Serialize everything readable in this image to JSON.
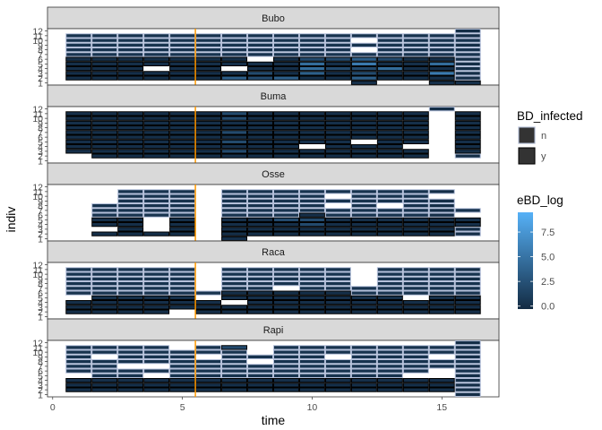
{
  "chart_data": {
    "type": "heatmap",
    "xlabel": "time",
    "ylabel": "indiv",
    "xlim": [
      -0.2,
      17.2
    ],
    "x_ticks": [
      "0",
      "5",
      "10",
      "15"
    ],
    "x_tick_values": [
      0,
      5,
      10,
      15
    ],
    "y_ticks": [
      "1",
      "2",
      "3",
      "4",
      "5",
      "6",
      "7",
      "8",
      "9",
      "10",
      "11",
      "12"
    ],
    "ylim": [
      0.5,
      12.5
    ],
    "vline": {
      "x": 5.5,
      "color": "#ff9900"
    },
    "fill_legend": {
      "title": "BD_infected",
      "entries": [
        "n",
        "y"
      ],
      "outline_colors": [
        "#b3bfd9",
        "#000000"
      ]
    },
    "color_legend": {
      "title": "eBD_log",
      "breaks": [
        "0.0",
        "2.5",
        "5.0",
        "7.5"
      ],
      "break_values": [
        0,
        2.5,
        5,
        7.5
      ],
      "limits": [
        -0.3,
        9.5
      ],
      "low_color": "#132b43",
      "high_color": "#56b1f7"
    },
    "panels": [
      {
        "label": "Bubo",
        "times": [
          1,
          2,
          3,
          4,
          5,
          6,
          7,
          8,
          9,
          10,
          11,
          12,
          13,
          14,
          15,
          16
        ],
        "rows": [
          {
            "i": 12,
            "v": "...............m"
          },
          {
            "i": 11,
            "v": "nnnnnnnnnnnnnnnm"
          },
          {
            "i": 10,
            "v": "nnnnnnnnnnn.nnnn"
          },
          {
            "i": 9,
            "v": "nnnnnnnnnnnnnnnm"
          },
          {
            "i": 8,
            "v": "nnnnnnnnnnn.nnnn"
          },
          {
            "i": 7,
            "v": "nnnnnnnnnnnnnnnn"
          },
          {
            "i": 6,
            "v": "yyyyyyy.ygg4gyym"
          },
          {
            "i": 5,
            "v": "yyyyyyyyy5y6yy5m"
          },
          {
            "i": 4,
            "v": "yyy.yy.yy5gg5yym"
          },
          {
            "i": 3,
            "v": "yyyyyyygy4ygyy6m"
          },
          {
            "i": 2,
            "v": "yyyyyy4g4yy4yyym"
          },
          {
            "i": 1,
            "v": "...........-..-y"
          }
        ]
      },
      {
        "label": "Buma",
        "times": [
          1,
          2,
          3,
          4,
          5,
          6,
          7,
          8,
          9,
          10,
          11,
          12,
          13,
          14,
          15,
          16
        ],
        "rows": [
          {
            "i": 12,
            "v": "..............m."
          },
          {
            "i": 11,
            "v": "yyyyyygyyyyyyy.y"
          },
          {
            "i": 10,
            "v": "yyyyyygyyyyyyy.y"
          },
          {
            "i": 9,
            "v": "yyyyyyyyyyyyyy.y"
          },
          {
            "i": 8,
            "v": "yyyyyyyyyyyyyy.y"
          },
          {
            "i": 7,
            "v": "yyyyyygyyyyyyy.y"
          },
          {
            "i": 6,
            "v": "yyyyyyyyyyyyyy.y"
          },
          {
            "i": 5,
            "v": "yyyyyygyyyy.yy.y"
          },
          {
            "i": 4,
            "v": "yyyyyyyyy.yyy..y"
          },
          {
            "i": 3,
            "v": "yyyyyygyyyyyyy.y"
          },
          {
            "i": 2,
            "v": ".yyyyyyyyyyyyy.m"
          },
          {
            "i": 1,
            "v": "................"
          }
        ]
      },
      {
        "label": "Osse",
        "times": [
          1,
          2,
          3,
          4,
          5,
          6,
          7,
          8,
          9,
          10,
          11,
          12,
          13,
          14,
          15,
          16
        ],
        "rows": [
          {
            "i": 12,
            "v": "................"
          },
          {
            "i": 11,
            "v": "..nnn.nnnnnnnnm."
          },
          {
            "i": 10,
            "v": "..nnn.nnnn.nnn.."
          },
          {
            "i": 9,
            "v": "..nnn.nnnnnnnnm."
          },
          {
            "i": 8,
            "v": ".nnnn.nnnn.n.nm."
          },
          {
            "i": 7,
            "v": ".nnnn.nnnnnnnnmn"
          },
          {
            "i": 6,
            "v": ".nnnn.nnnynnnnm."
          },
          {
            "i": 5,
            "v": ".yy.y.yyggyyyyyy"
          },
          {
            "i": 4,
            "v": ".yy.y.yyygyyyyyy"
          },
          {
            "i": 3,
            "v": "..y.y.yyyyyyyyym"
          },
          {
            "i": 2,
            "v": ".yyyy.yyyyyyyyym"
          },
          {
            "i": 1,
            "v": "......-........."
          }
        ]
      },
      {
        "label": "Raca",
        "times": [
          1,
          2,
          3,
          4,
          5,
          6,
          7,
          8,
          9,
          10,
          11,
          12,
          13,
          14,
          15,
          16
        ],
        "rows": [
          {
            "i": 12,
            "v": "................"
          },
          {
            "i": 11,
            "v": "nnnnn.nnnnn.nnnm"
          },
          {
            "i": 10,
            "v": "nnnnn.nnnnn.nnnn"
          },
          {
            "i": 9,
            "v": "nnnnn.nnnnn.nnnm"
          },
          {
            "i": 8,
            "v": "nnnnn.nnnnn.nnnn"
          },
          {
            "i": 7,
            "v": "nnnnn.nn.nnnnnnn"
          },
          {
            "i": 6,
            "v": "nnnnnnyyyyynnnnn"
          },
          {
            "i": 5,
            "v": ".yyyy.yyyyyyy.yy"
          },
          {
            "i": 4,
            "v": "yyyyyy.yyyyyyyyy"
          },
          {
            "i": 3,
            "v": "yyyyyyyyyyyyyyyy"
          },
          {
            "i": 2,
            "v": "yyyy.yyyyyyyyyyy"
          },
          {
            "i": 1,
            "v": "................"
          }
        ]
      },
      {
        "label": "Rapi",
        "times": [
          1,
          2,
          3,
          4,
          5,
          6,
          7,
          8,
          9,
          10,
          11,
          12,
          13,
          14,
          15,
          16
        ],
        "rows": [
          {
            "i": 12,
            "v": "...............m"
          },
          {
            "i": 11,
            "v": "nnnn.ng.nnnnnnnm"
          },
          {
            "i": 10,
            "v": "nnnnnnn.nnnnnnnn"
          },
          {
            "i": 9,
            "v": "n.nnn.nnnn.nnn.m"
          },
          {
            "i": 8,
            "v": "nnnnnnn.nnnnnnnn"
          },
          {
            "i": 7,
            "v": "nn..nnnnnnnnnnnm"
          },
          {
            "i": 6,
            "v": "nnnnnnnnnnnnnn.n"
          },
          {
            "i": 5,
            "v": ".nn.nnnnnnnnn..m"
          },
          {
            "i": 4,
            "v": "yyyyyyyyyyyyyyym"
          },
          {
            "i": 3,
            "v": "yyyyyyyyyyyyyyym"
          },
          {
            "i": 2,
            "v": "yyyyyyyyyyyyyyym"
          },
          {
            "i": 1,
            "v": "...............m"
          }
        ]
      }
    ]
  }
}
